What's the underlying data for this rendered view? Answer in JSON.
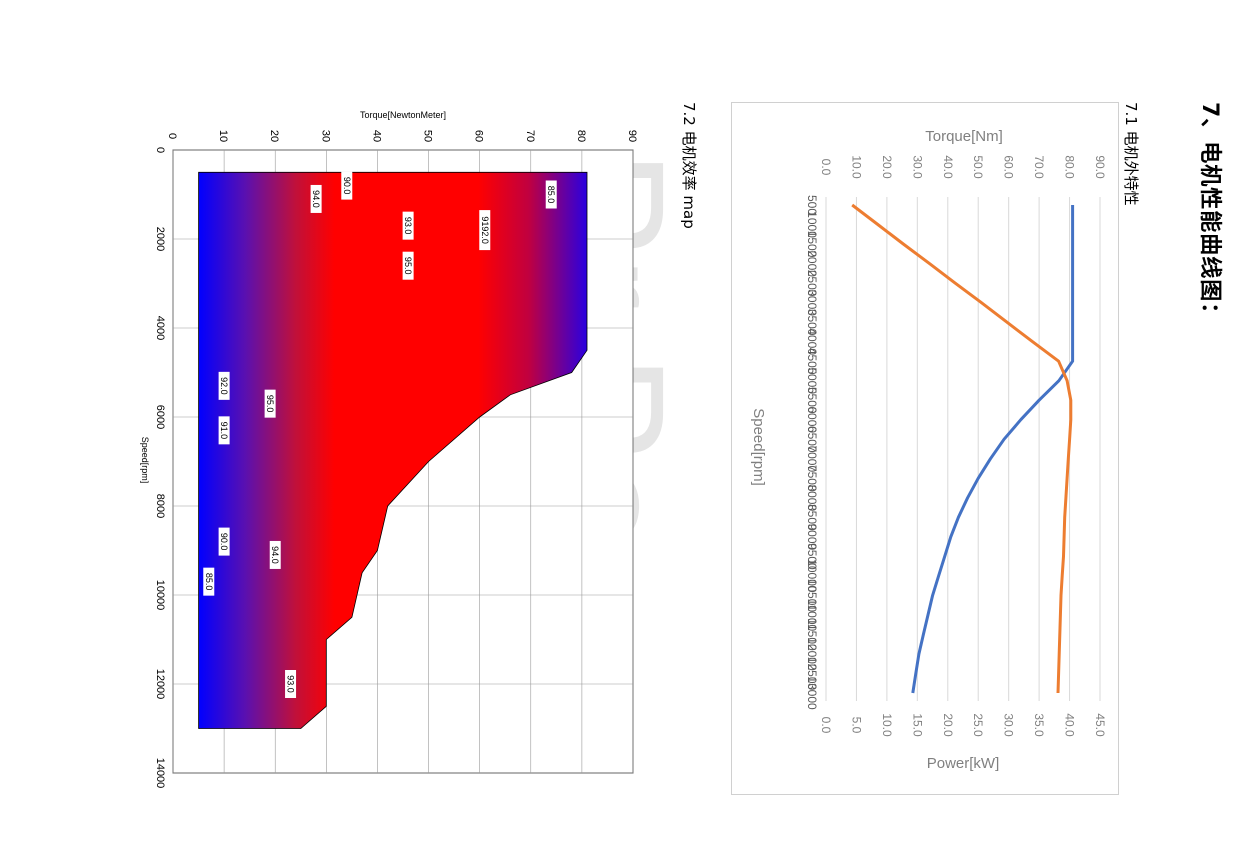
{
  "page": {
    "heading": "7、电机性能曲线图：",
    "section_1": "7.1 电机外特性",
    "section_2": "7.2 电机效率 map",
    "watermark": "Pr Po"
  },
  "chart_data": [
    {
      "type": "line",
      "x": [
        500,
        1000,
        1500,
        2000,
        2500,
        3000,
        3500,
        4000,
        4500,
        5000,
        5500,
        6000,
        6500,
        7000,
        7500,
        8000,
        8500,
        9000,
        9500,
        10000,
        10500,
        11000,
        11500,
        12000,
        12500,
        13000
      ],
      "x_ticks": [
        "500",
        "1000",
        "1500",
        "2000",
        "2500",
        "3000",
        "3500",
        "4000",
        "4500",
        "5000",
        "5500",
        "6000",
        "6500",
        "7000",
        "7500",
        "8000",
        "8500",
        "9000",
        "9500",
        "10000",
        "10500",
        "11000",
        "11500",
        "12000",
        "12500",
        "13000"
      ],
      "xlabel": "Speed[rpm]",
      "ylabel_left": "Torque[Nm]",
      "ylabel_right": "Power[kW]",
      "ylim_left": [
        0,
        90
      ],
      "ylim_right": [
        0,
        45
      ],
      "yticks_left": [
        "0.0",
        "10.0",
        "20.0",
        "30.0",
        "40.0",
        "50.0",
        "60.0",
        "70.0",
        "80.0",
        "90.0"
      ],
      "yticks_right": [
        "0.0",
        "5.0",
        "10.0",
        "15.0",
        "20.0",
        "25.0",
        "30.0",
        "35.0",
        "40.0",
        "45.0"
      ],
      "grid": true,
      "series": [
        {
          "axis": "torque",
          "color": "#4472c4",
          "values": [
            81,
            81,
            81,
            81,
            81,
            81,
            81,
            81,
            81,
            76.5,
            70,
            64,
            58.5,
            54,
            50,
            46.5,
            43.5,
            41,
            39,
            37,
            35,
            33.5,
            32,
            30.5,
            29.5,
            28.5
          ]
        },
        {
          "axis": "power",
          "color": "#ed7d31",
          "values": [
            4.3,
            8.5,
            12.7,
            17,
            21.2,
            25.5,
            29.7,
            33.9,
            38.2,
            39.6,
            40.2,
            40.2,
            40,
            39.8,
            39.6,
            39.4,
            39.2,
            39.1,
            39,
            38.8,
            38.6,
            38.5,
            38.4,
            38.3,
            38.2,
            38.1
          ]
        }
      ]
    },
    {
      "type": "heatmap",
      "xlabel": "Speed[rpm]",
      "ylabel": "Torque[NewtonMeter]",
      "xlim": [
        0,
        14000
      ],
      "ylim": [
        0,
        90
      ],
      "x_ticks": [
        "0",
        "2000",
        "4000",
        "6000",
        "8000",
        "10000",
        "12000",
        "14000"
      ],
      "y_ticks": [
        "0",
        "10",
        "20",
        "30",
        "40",
        "50",
        "60",
        "70",
        "80",
        "90"
      ],
      "colors": {
        "high": "#ff0000",
        "low": "#0000ff"
      },
      "envelope": [
        [
          500,
          5
        ],
        [
          500,
          81
        ],
        [
          4500,
          81
        ],
        [
          5000,
          78
        ],
        [
          5500,
          66
        ],
        [
          6000,
          60
        ],
        [
          7000,
          50
        ],
        [
          8000,
          42
        ],
        [
          9000,
          40
        ],
        [
          9500,
          37
        ],
        [
          10500,
          35
        ],
        [
          11000,
          30
        ],
        [
          12500,
          30
        ],
        [
          13000,
          25
        ],
        [
          13000,
          5
        ]
      ],
      "contour_labels": [
        {
          "label": "85.0",
          "speed": 1000,
          "torque": 74
        },
        {
          "label": "90.0",
          "speed": 800,
          "torque": 34
        },
        {
          "label": "94.0",
          "speed": 1100,
          "torque": 28
        },
        {
          "label": "93.0",
          "speed": 1700,
          "torque": 46
        },
        {
          "label": "9192.0",
          "speed": 1800,
          "torque": 61
        },
        {
          "label": "95.0",
          "speed": 2600,
          "torque": 46
        },
        {
          "label": "92.0",
          "speed": 5300,
          "torque": 10
        },
        {
          "label": "95.0",
          "speed": 5700,
          "torque": 19
        },
        {
          "label": "91.0",
          "speed": 6300,
          "torque": 10
        },
        {
          "label": "90.0",
          "speed": 8800,
          "torque": 10
        },
        {
          "label": "94.0",
          "speed": 9100,
          "torque": 20
        },
        {
          "label": "85.0",
          "speed": 9700,
          "torque": 7
        },
        {
          "label": "93.0",
          "speed": 12000,
          "torque": 23
        }
      ]
    }
  ]
}
